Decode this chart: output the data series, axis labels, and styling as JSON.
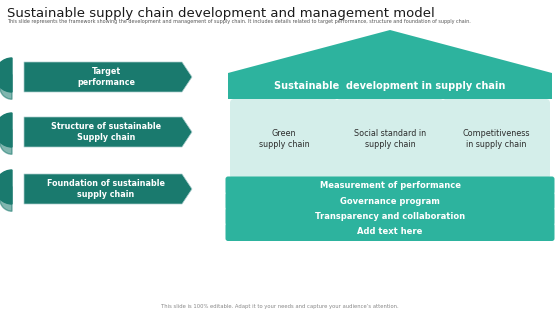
{
  "title": "Sustainable supply chain development and management model",
  "subtitle": "This slide represents the framework showing the development and management of supply chain. It includes details related to target performance, structure and foundation of supply chain.",
  "footer": "This slide is 100% editable. Adapt it to your needs and capture your audience’s attention.",
  "bg_color": "#ffffff",
  "teal_dark": "#1a7a6e",
  "teal_mid": "#2db39e",
  "teal_light": "#d4eeea",
  "left_labels": [
    "Target\nperformance",
    "Structure of sustainable\nSupply chain",
    "Foundation of sustainable\nsupply chain"
  ],
  "roof_label": "Sustainable  development in supply chain",
  "pillar_labels": [
    "Green\nsupply chain",
    "Social standard in\nsupply chain",
    "Competitiveness\nin supply chain"
  ],
  "bar_labels": [
    "Measurement of performance",
    "Governance program",
    "Transparency and collaboration",
    "Add text here"
  ]
}
